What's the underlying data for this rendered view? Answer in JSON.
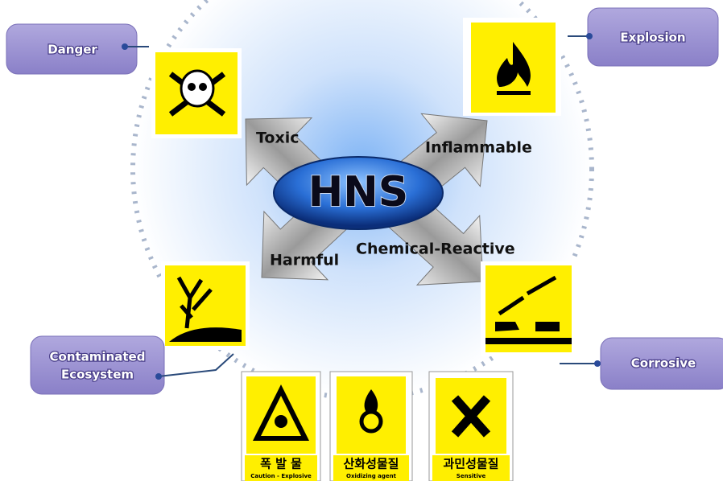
{
  "center": "HNS",
  "arrows": [
    {
      "label": "Toxic"
    },
    {
      "label": "Inflammable"
    },
    {
      "label": "Harmful"
    },
    {
      "label": "Chemical-Reactive"
    }
  ],
  "callouts": [
    {
      "lines": [
        "Danger"
      ]
    },
    {
      "lines": [
        "Explosion"
      ]
    },
    {
      "lines": [
        "Contaminated",
        "Ecosystem"
      ]
    },
    {
      "lines": [
        "Corrosive"
      ]
    }
  ],
  "signs": [
    {
      "title": "폭 발 물",
      "caption": "Caution - Explosive"
    },
    {
      "title": "산화성물질",
      "caption": "Oxidizing agent"
    },
    {
      "title": "과민성물질",
      "caption": "Sensitive"
    }
  ]
}
